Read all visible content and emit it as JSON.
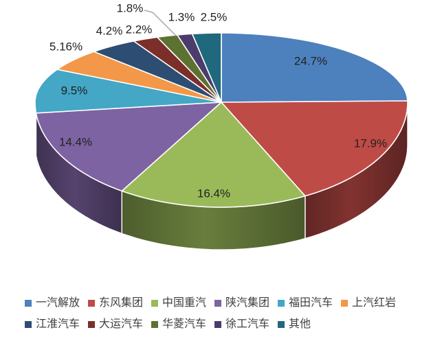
{
  "background_color": "#FFFFFF",
  "chart_data": {
    "type": "pie",
    "style": "3d",
    "start_angle_deg": 0,
    "direction": "clockwise",
    "legend_position": "bottom",
    "legend_items_per_row": [
      6,
      5
    ],
    "slices": [
      {
        "label": "一汽解放",
        "value": 24.7,
        "display": "24.7%",
        "color": "#4D81BD"
      },
      {
        "label": "东风集团",
        "value": 17.9,
        "display": "17.9%",
        "color": "#BF4B47"
      },
      {
        "label": "中国重汽",
        "value": 16.4,
        "display": "16.4%",
        "color": "#9ABA59"
      },
      {
        "label": "陕汽集团",
        "value": 14.4,
        "display": "14.4%",
        "color": "#7E63A2"
      },
      {
        "label": "福田汽车",
        "value": 9.5,
        "display": "9.5%",
        "color": "#43A7C5"
      },
      {
        "label": "上汽红岩",
        "value": 5.16,
        "display": "5.16%",
        "color": "#F39748"
      },
      {
        "label": "江淮汽车",
        "value": 4.2,
        "display": "4.2%",
        "color": "#2E4D73"
      },
      {
        "label": "大运汽车",
        "value": 2.2,
        "display": "2.2%",
        "color": "#7C2E2A"
      },
      {
        "label": "华菱汽车",
        "value": 1.8,
        "display": "1.8%",
        "color": "#5D7230"
      },
      {
        "label": "徐工汽车",
        "value": 1.3,
        "display": "1.3%",
        "color": "#4B3C6C"
      },
      {
        "label": "其他",
        "value": 2.5,
        "display": "2.5%",
        "color": "#20687E"
      }
    ],
    "leader_line_color": "#A6A6A6",
    "separator_color": "#FFFFFF",
    "label_text_color": "#222222",
    "legend_text_color": "#404040"
  }
}
